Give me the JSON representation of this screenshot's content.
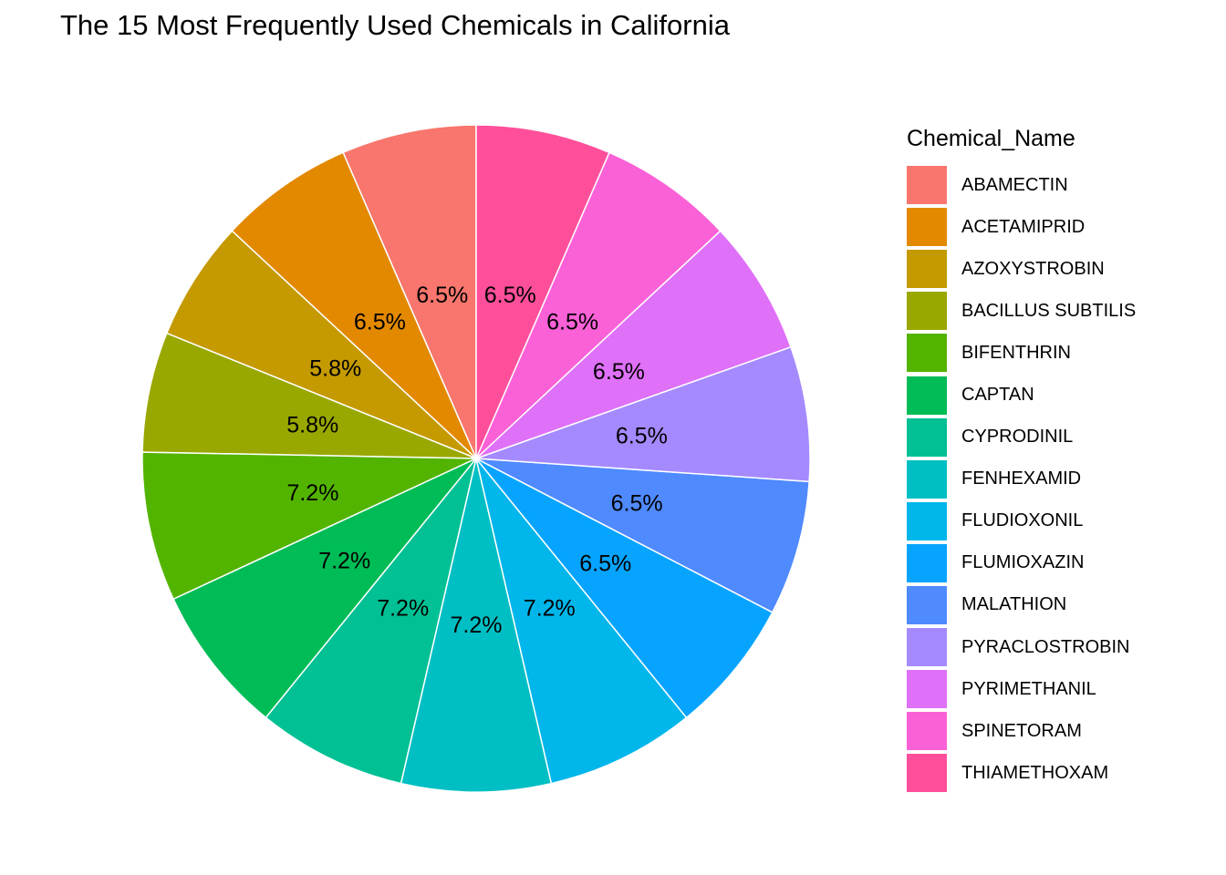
{
  "chart_data": {
    "type": "pie",
    "title": "The 15 Most Frequently Used Chemicals in California",
    "legend_title": "Chemical_Name",
    "legend_position": "right",
    "direction": "counterclockwise",
    "start": "top",
    "categories": [
      "ABAMECTIN",
      "ACETAMIPRID",
      "AZOXYSTROBIN",
      "BACILLUS SUBTILIS",
      "BIFENTHRIN",
      "CAPTAN",
      "CYPRODINIL",
      "FENHEXAMID",
      "FLUDIOXONIL",
      "FLUMIOXAZIN",
      "MALATHION",
      "PYRACLOSTROBIN",
      "PYRIMETHANIL",
      "SPINETORAM",
      "THIAMETHOXAM"
    ],
    "values": [
      6.5,
      6.5,
      5.8,
      5.8,
      7.2,
      7.2,
      7.2,
      7.2,
      7.2,
      6.5,
      6.5,
      6.5,
      6.5,
      6.5,
      6.5
    ],
    "labels": [
      "6.5%",
      "6.5%",
      "5.8%",
      "5.8%",
      "7.2%",
      "7.2%",
      "7.2%",
      "7.2%",
      "7.2%",
      "6.5%",
      "6.5%",
      "6.5%",
      "6.5%",
      "6.5%",
      "6.5%"
    ],
    "colors": [
      "#F8766D",
      "#E38900",
      "#C49A00",
      "#99A800",
      "#53B400",
      "#00BC56",
      "#00C094",
      "#00BFC4",
      "#00B6EB",
      "#06A4FF",
      "#A58AFF",
      "#DF70F8",
      "#FB61D7",
      "#FF66A8",
      "#FF4F9A"
    ]
  }
}
